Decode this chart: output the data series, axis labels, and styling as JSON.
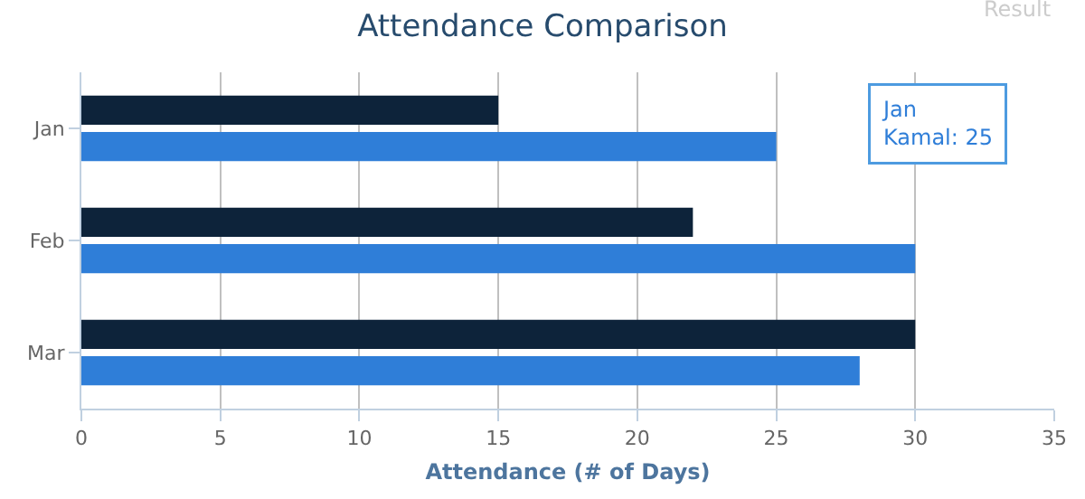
{
  "chart_data": {
    "type": "bar",
    "orientation": "horizontal",
    "title": "Attendance Comparison",
    "xlabel": "Attendance (# of Days)",
    "categories": [
      "Jan",
      "Feb",
      "Mar"
    ],
    "series": [
      {
        "color": "#0d233a",
        "values": [
          15,
          22,
          30
        ]
      },
      {
        "color": "#2f7ed8",
        "values": [
          25,
          30,
          28
        ]
      }
    ],
    "xlim": [
      0,
      35
    ],
    "xticks": [
      0,
      5,
      10,
      15,
      20,
      25,
      30,
      35
    ],
    "grid": "x",
    "annotations": [
      "Jan\nKamal: 25",
      "Result"
    ]
  }
}
